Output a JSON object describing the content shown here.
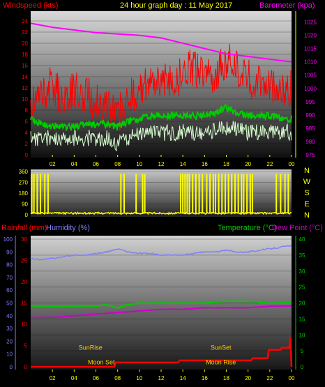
{
  "title": "24 hour graph day : 11 May 2017",
  "colors": {
    "wind_gust": "#ff0000",
    "wind_avg": "#d8ffd0",
    "wind_mid": "#00cc00",
    "barometer": "#ff00ff",
    "direction": "#ffff00",
    "rain": "#ff0000",
    "humidity": "#8080ff",
    "temperature": "#00cc00",
    "dewpoint": "#cc00cc",
    "sun_moon_text": "#ffcc00",
    "axis_text": "#ffff00"
  },
  "chart_data": [
    {
      "type": "line",
      "name": "wind-barometer",
      "left_label": "Windspeed (kts)",
      "right_label": "Barometer (kpa)",
      "left_ticks": [
        "0",
        "2",
        "4",
        "6",
        "8",
        "10",
        "12",
        "14",
        "16",
        "18",
        "20",
        "22",
        "24"
      ],
      "right_ticks": [
        "975",
        "980",
        "985",
        "990",
        "995",
        "1000",
        "1005",
        "1010",
        "1015",
        "1020",
        "1025"
      ],
      "x_ticks": [
        "02",
        "04",
        "06",
        "08",
        "10",
        "12",
        "14",
        "16",
        "18",
        "20",
        "22",
        "00"
      ],
      "ylim_left": [
        0,
        25
      ],
      "ylim_right": [
        975,
        1027.5
      ],
      "xlim": [
        0,
        24
      ],
      "series": [
        {
          "key": "gust",
          "values": [
            [
              0,
              8
            ],
            [
              1,
              10
            ],
            [
              2,
              12
            ],
            [
              3,
              9
            ],
            [
              4,
              11
            ],
            [
              5,
              10
            ],
            [
              6,
              9
            ],
            [
              7,
              8
            ],
            [
              8,
              6
            ],
            [
              9,
              10
            ],
            [
              10,
              11
            ],
            [
              11,
              12
            ],
            [
              12,
              13
            ],
            [
              13,
              12
            ],
            [
              14,
              14
            ],
            [
              15,
              15
            ],
            [
              16,
              13
            ],
            [
              17,
              14
            ],
            [
              18,
              16
            ],
            [
              19,
              15
            ],
            [
              20,
              13
            ],
            [
              21,
              12
            ],
            [
              22,
              12
            ],
            [
              23,
              11
            ],
            [
              24,
              11
            ]
          ]
        },
        {
          "key": "mid",
          "values": [
            [
              0,
              6.5
            ],
            [
              1,
              5.5
            ],
            [
              2,
              5
            ],
            [
              3,
              5
            ],
            [
              4,
              5
            ],
            [
              5,
              5.5
            ],
            [
              6,
              5.5
            ],
            [
              7,
              5.5
            ],
            [
              8,
              5
            ],
            [
              9,
              6
            ],
            [
              10,
              6.5
            ],
            [
              11,
              7
            ],
            [
              12,
              7
            ],
            [
              13,
              7
            ],
            [
              14,
              7
            ],
            [
              15,
              7
            ],
            [
              16,
              7
            ],
            [
              17,
              7.5
            ],
            [
              18,
              8.5
            ],
            [
              19,
              7.5
            ],
            [
              20,
              7
            ],
            [
              21,
              7
            ],
            [
              22,
              7
            ],
            [
              23,
              6.5
            ],
            [
              24,
              6.5
            ]
          ]
        },
        {
          "key": "avg",
          "values": [
            [
              0,
              3
            ],
            [
              1,
              3
            ],
            [
              2,
              3
            ],
            [
              3,
              3
            ],
            [
              4,
              3
            ],
            [
              5,
              3
            ],
            [
              6,
              3
            ],
            [
              7,
              3
            ],
            [
              8,
              2
            ],
            [
              9,
              3
            ],
            [
              10,
              3.5
            ],
            [
              11,
              4
            ],
            [
              12,
              4
            ],
            [
              13,
              4
            ],
            [
              14,
              4
            ],
            [
              15,
              4
            ],
            [
              16,
              4
            ],
            [
              17,
              4.5
            ],
            [
              18,
              5
            ],
            [
              19,
              4.5
            ],
            [
              20,
              4
            ],
            [
              21,
              4
            ],
            [
              22,
              4
            ],
            [
              23,
              4
            ],
            [
              24,
              4
            ]
          ]
        },
        {
          "key": "baro",
          "values": [
            [
              0,
              1024.5
            ],
            [
              2,
              1023
            ],
            [
              4,
              1022
            ],
            [
              6,
              1021
            ],
            [
              8,
              1020.5
            ],
            [
              10,
              1020
            ],
            [
              12,
              1019
            ],
            [
              14,
              1017
            ],
            [
              16,
              1015
            ],
            [
              18,
              1013
            ],
            [
              20,
              1012
            ],
            [
              22,
              1011
            ],
            [
              24,
              1010
            ]
          ]
        }
      ]
    },
    {
      "type": "scatter",
      "name": "wind-direction",
      "left_ticks": [
        "0",
        "90",
        "180",
        "270",
        "360"
      ],
      "right_ticks": [
        "N",
        "E",
        "S",
        "W",
        "N"
      ],
      "ylim": [
        0,
        360
      ],
      "xlim": [
        0,
        24
      ],
      "spikes_x": [
        0.1,
        0.3,
        0.6,
        0.9,
        1.3,
        1.6,
        8.3,
        8.6,
        9.7,
        10.3,
        10.5,
        13.8,
        14.0,
        14.2,
        14.4,
        14.6,
        14.9,
        15.2,
        15.5,
        15.8,
        16.2,
        16.5,
        16.8,
        17.0,
        17.3,
        17.6,
        17.9,
        18.2,
        18.5,
        18.8,
        19.1,
        19.4,
        19.6,
        19.9,
        20.2,
        20.4,
        22.6,
        23.0,
        23.4,
        23.7
      ]
    },
    {
      "type": "line",
      "name": "rain-humidity-temperature",
      "left_label_rain": "Rainfall (mm)",
      "left_label_hum": "Humidity (%)",
      "right_label_temp": "Temperature (°C)",
      "right_label_dew": "Dew Point (°C)",
      "humidity_ticks": [
        "0",
        "10",
        "20",
        "30",
        "40",
        "50",
        "60",
        "70",
        "80",
        "90",
        "100"
      ],
      "rain_ticks": [
        "0",
        "5",
        "10",
        "15",
        "20",
        "25",
        "30"
      ],
      "temp_ticks": [
        "0",
        "5",
        "10",
        "15",
        "20",
        "25",
        "30",
        "35",
        "40"
      ],
      "x_ticks": [
        "02",
        "04",
        "06",
        "08",
        "10",
        "12",
        "14",
        "16",
        "18",
        "20",
        "22",
        "00"
      ],
      "ylim_temp": [
        0,
        40
      ],
      "ylim_rain": [
        0,
        30
      ],
      "xlim": [
        0,
        24
      ],
      "series": [
        {
          "key": "humidity_as_temp",
          "values": [
            [
              0,
              34
            ],
            [
              1,
              33.5
            ],
            [
              2,
              34
            ],
            [
              3,
              34.5
            ],
            [
              4,
              35
            ],
            [
              5,
              35
            ],
            [
              6,
              35.5
            ],
            [
              7,
              36
            ],
            [
              8,
              37
            ],
            [
              9,
              36
            ],
            [
              10,
              35.5
            ],
            [
              11,
              35.5
            ],
            [
              12,
              35
            ],
            [
              13,
              35
            ],
            [
              14,
              35
            ],
            [
              15,
              35.5
            ],
            [
              16,
              36
            ],
            [
              17,
              36
            ],
            [
              18,
              36.5
            ],
            [
              19,
              36
            ],
            [
              20,
              36
            ],
            [
              21,
              36.5
            ],
            [
              22,
              37
            ],
            [
              23,
              37.5
            ],
            [
              24,
              38
            ]
          ]
        },
        {
          "key": "temperature",
          "values": [
            [
              0,
              19
            ],
            [
              2,
              19
            ],
            [
              4,
              19
            ],
            [
              6,
              19
            ],
            [
              7,
              19.5
            ],
            [
              8,
              18.5
            ],
            [
              9,
              19.5
            ],
            [
              10,
              20
            ],
            [
              12,
              20
            ],
            [
              14,
              20
            ],
            [
              16,
              20
            ],
            [
              18,
              20.5
            ],
            [
              20,
              20.5
            ],
            [
              22,
              20
            ],
            [
              24,
              20
            ]
          ]
        },
        {
          "key": "dewpoint",
          "values": [
            [
              0,
              15.5
            ],
            [
              2,
              15.5
            ],
            [
              4,
              16
            ],
            [
              6,
              16.5
            ],
            [
              8,
              17
            ],
            [
              10,
              17.5
            ],
            [
              12,
              18
            ],
            [
              14,
              18
            ],
            [
              16,
              18.5
            ],
            [
              18,
              18.5
            ],
            [
              20,
              18.5
            ],
            [
              22,
              19
            ],
            [
              24,
              19
            ]
          ]
        },
        {
          "key": "rain",
          "values": [
            [
              0,
              0
            ],
            [
              7.7,
              0
            ],
            [
              7.8,
              1
            ],
            [
              13.6,
              1
            ],
            [
              13.7,
              1.5
            ],
            [
              20.3,
              1.5
            ],
            [
              20.4,
              2
            ],
            [
              21.8,
              2
            ],
            [
              21.9,
              4
            ],
            [
              23,
              4
            ],
            [
              23.1,
              4.5
            ],
            [
              23.8,
              4.5
            ],
            [
              23.9,
              7
            ],
            [
              24,
              0
            ]
          ]
        }
      ],
      "annotations": [
        {
          "text": "SunRise",
          "x": 5.5,
          "y_rain": 4
        },
        {
          "text": "SunSet",
          "x": 17.5,
          "y_rain": 4
        },
        {
          "text": "Moon Set",
          "x": 6.5,
          "y_rain": 0.6
        },
        {
          "text": "Moon Rise",
          "x": 17.5,
          "y_rain": 0.6
        }
      ]
    }
  ]
}
